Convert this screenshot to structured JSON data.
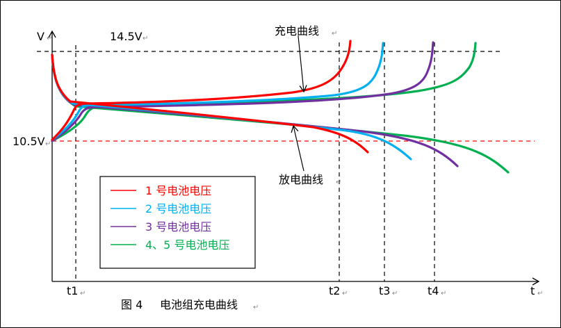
{
  "chart_data": {
    "type": "line",
    "title": "电池组充电曲线",
    "caption_prefix": "图 4",
    "xlabel": "t",
    "ylabel": "V",
    "y_reference_lines": [
      {
        "label": "14.5V",
        "value": 14.5,
        "color": "#000000"
      },
      {
        "label": "10.5V",
        "value": 10.5,
        "color": "#FF0000"
      }
    ],
    "x_ticks": [
      "t1",
      "t2",
      "t3",
      "t4"
    ],
    "annotations": {
      "charge": "充电曲线",
      "discharge": "放电曲线"
    },
    "legend": {
      "placement": "bottom-left",
      "entries": [
        {
          "label": "1 号电池电压",
          "color": "#FF0000"
        },
        {
          "label": "2 号电池电压",
          "color": "#00B0F0"
        },
        {
          "label": "3 号电池电压",
          "color": "#7030A0"
        },
        {
          "label": "4、5 号电池电压",
          "color": "#00B050"
        }
      ]
    },
    "series": [
      {
        "name": "1 号电池电压",
        "color": "#FF0000",
        "charge_end": "t2"
      },
      {
        "name": "2 号电池电压",
        "color": "#00B0F0",
        "charge_end": "t3"
      },
      {
        "name": "3 号电池电压",
        "color": "#7030A0",
        "charge_end": "t4"
      },
      {
        "name": "4、5 号电池电压",
        "color": "#00B050",
        "charge_end": "after t4"
      }
    ]
  }
}
